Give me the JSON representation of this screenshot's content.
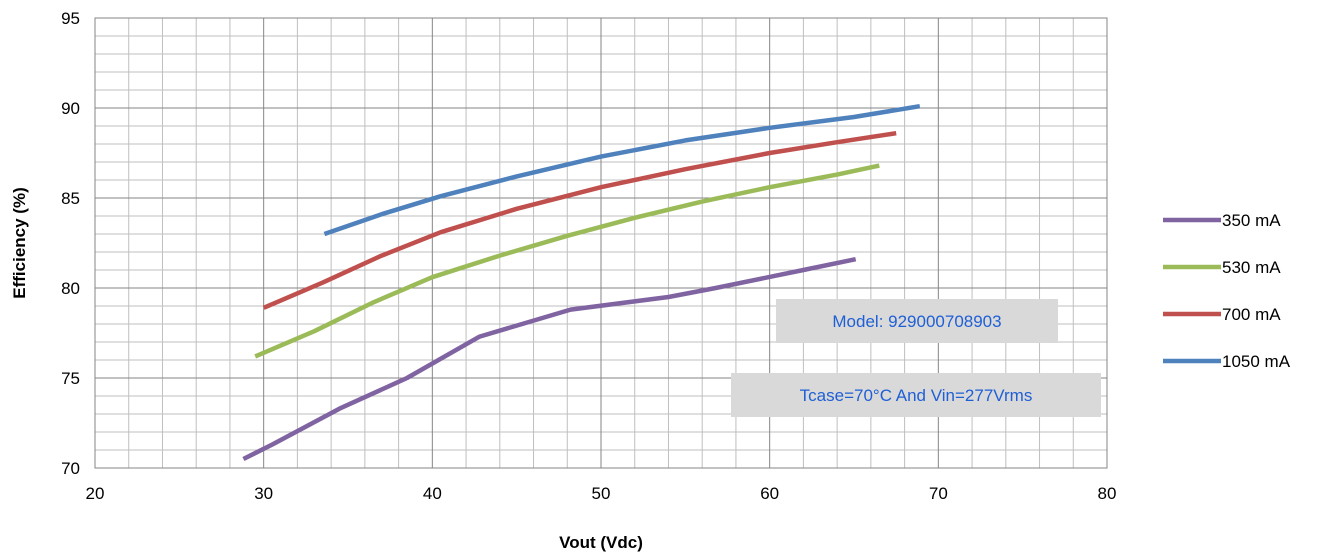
{
  "chart_data": {
    "type": "line",
    "title": "",
    "xlabel": "Vout (Vdc)",
    "ylabel": "Efficiency (%)",
    "xlim": [
      20,
      80
    ],
    "ylim": [
      70,
      95
    ],
    "xticks": [
      "20",
      "30",
      "40",
      "50",
      "60",
      "70",
      "80"
    ],
    "yticks": [
      "70",
      "75",
      "80",
      "85",
      "90",
      "95"
    ],
    "grid": true,
    "legend_position": "right",
    "series": [
      {
        "name": "350 mA",
        "color": "#8064a2",
        "points": [
          [
            28.8,
            70.5
          ],
          [
            30.5,
            71.3
          ],
          [
            34.5,
            73.3
          ],
          [
            38.5,
            75.0
          ],
          [
            42.8,
            77.3
          ],
          [
            48.2,
            78.8
          ],
          [
            54.0,
            79.5
          ],
          [
            56.8,
            80.0
          ],
          [
            62.0,
            81.0
          ],
          [
            65.1,
            81.6
          ]
        ]
      },
      {
        "name": "530 mA",
        "color": "#9bbb59",
        "points": [
          [
            29.5,
            76.2
          ],
          [
            33.0,
            77.6
          ],
          [
            36.5,
            79.2
          ],
          [
            40.0,
            80.6
          ],
          [
            44.0,
            81.8
          ],
          [
            48.0,
            82.9
          ],
          [
            52.0,
            83.9
          ],
          [
            56.0,
            84.8
          ],
          [
            60.0,
            85.6
          ],
          [
            64.0,
            86.3
          ],
          [
            66.5,
            86.8
          ]
        ]
      },
      {
        "name": "700 mA",
        "color": "#c0504d",
        "points": [
          [
            30.0,
            78.9
          ],
          [
            33.5,
            80.3
          ],
          [
            37.0,
            81.8
          ],
          [
            40.5,
            83.1
          ],
          [
            45.0,
            84.4
          ],
          [
            50.0,
            85.6
          ],
          [
            55.0,
            86.6
          ],
          [
            60.0,
            87.5
          ],
          [
            64.0,
            88.1
          ],
          [
            67.5,
            88.6
          ]
        ]
      },
      {
        "name": "1050 mA",
        "color": "#4f81bd",
        "points": [
          [
            33.6,
            83.0
          ],
          [
            37.0,
            84.1
          ],
          [
            40.5,
            85.1
          ],
          [
            45.0,
            86.2
          ],
          [
            50.0,
            87.3
          ],
          [
            55.0,
            88.2
          ],
          [
            60.0,
            88.9
          ],
          [
            65.0,
            89.5
          ],
          [
            68.9,
            90.1
          ]
        ]
      }
    ],
    "annotations": [
      "Model: 929000708903",
      "Tcase=70°C And Vin=277Vrms"
    ]
  }
}
